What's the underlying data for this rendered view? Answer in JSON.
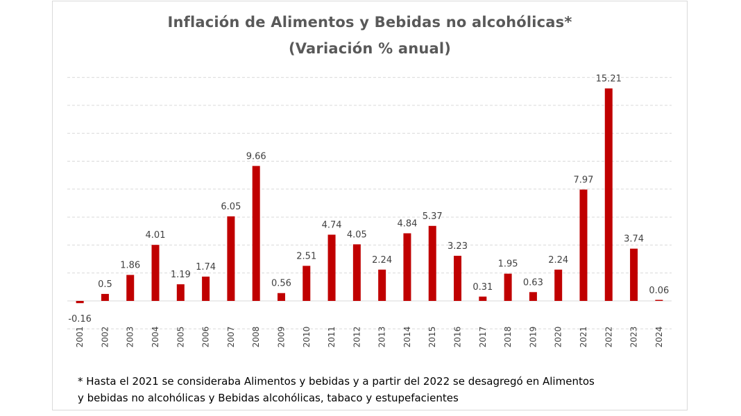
{
  "chart_data": {
    "type": "bar",
    "title": "Inflación de Alimentos y Bebidas no alcohólicas*",
    "subtitle": "(Variación % anual)",
    "categories": [
      "2001",
      "2002",
      "2003",
      "2004",
      "2005",
      "2006",
      "2007",
      "2008",
      "2009",
      "2010",
      "2011",
      "2012",
      "2013",
      "2014",
      "2015",
      "2016",
      "2017",
      "2018",
      "2019",
      "2020",
      "2021",
      "2022",
      "2023",
      "2024"
    ],
    "values": [
      -0.16,
      0.5,
      1.86,
      4.01,
      1.19,
      1.74,
      6.05,
      9.66,
      0.56,
      2.51,
      4.74,
      4.05,
      2.24,
      4.84,
      5.37,
      3.23,
      0.31,
      1.95,
      0.63,
      2.24,
      7.97,
      15.21,
      3.74,
      0.06
    ],
    "data_labels": [
      "-0.16",
      "0.5",
      "1.86",
      "4.01",
      "1.19",
      "1.74",
      "6.05",
      "9.66",
      "0.56",
      "2.51",
      "4.74",
      "4.05",
      "2.24",
      "4.84",
      "5.37",
      "3.23",
      "0.31",
      "1.95",
      "0.63",
      "2.24",
      "7.97",
      "15.21",
      "3.74",
      "0.06"
    ],
    "ylim": [
      -2,
      16
    ],
    "gridlines": true,
    "legend": "none",
    "bar_color": "#c00000",
    "footnote": [
      "* Hasta el 2021 se consideraba Alimentos y bebidas y a partir del 2022 se desagregó en Alimentos",
      "y bebidas no alcohólicas y Bebidas alcohólicas, tabaco y estupefacientes"
    ]
  }
}
